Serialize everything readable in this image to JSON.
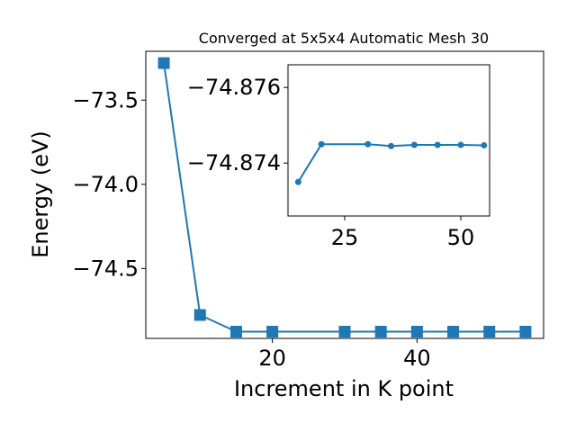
{
  "chart_data": [
    {
      "type": "line",
      "title": "Converged at 5x5x4 Automatic Mesh 30",
      "xlabel": "Increment in K point",
      "ylabel": "Energy (eV)",
      "xlim": [
        2.5,
        57.5
      ],
      "ylim": [
        -74.915,
        -73.21
      ],
      "x_ticks": [
        20,
        40
      ],
      "y_ticks": [
        -73.5,
        -74.0,
        -74.5
      ],
      "x_tick_labels": [
        "20",
        "40"
      ],
      "y_tick_labels": [
        "−73.5",
        "−74.0",
        "−74.5"
      ],
      "grid": false,
      "marker": "square",
      "color": "#1f77b4",
      "series": [
        {
          "x": [
            5,
            10,
            15,
            20,
            30,
            35,
            40,
            45,
            50,
            55
          ],
          "y": [
            -73.28,
            -74.776,
            -74.875,
            -74.875,
            -74.875,
            -74.875,
            -74.875,
            -74.875,
            -74.875,
            -74.875
          ]
        }
      ]
    },
    {
      "type": "line",
      "title": "",
      "xlabel": "",
      "ylabel": "",
      "xlim": [
        12.8,
        56.2
      ],
      "ylim": [
        -74.8726,
        -74.8766
      ],
      "x_ticks": [
        25,
        50
      ],
      "y_ticks": [
        -74.876,
        -74.874
      ],
      "x_tick_labels": [
        "25",
        "50"
      ],
      "y_tick_labels": [
        "−74.876",
        "−74.874"
      ],
      "grid": false,
      "marker": "circle",
      "color": "#1f77b4",
      "series": [
        {
          "x": [
            15,
            20,
            30,
            35,
            40,
            45,
            50,
            55
          ],
          "y": [
            -74.8735,
            -74.8745,
            -74.8745,
            -74.87445,
            -74.87448,
            -74.87448,
            -74.87448,
            -74.87447
          ]
        }
      ]
    }
  ]
}
